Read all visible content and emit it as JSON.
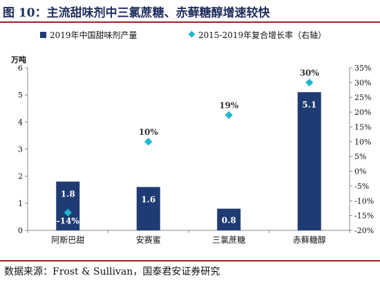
{
  "header": {
    "title": "图 10：主流甜味剂中三氯蔗糖、赤藓糖醇增速较快"
  },
  "chart_data": {
    "type": "bar",
    "categories": [
      "阿斯巴甜",
      "安赛蜜",
      "三氯蔗糖",
      "赤藓糖醇"
    ],
    "series": [
      {
        "name": "2019年中国甜味剂产量",
        "type": "bar",
        "axis": "left",
        "values": [
          1.8,
          1.6,
          0.8,
          5.1
        ],
        "labels": [
          "1.8",
          "1.6",
          "0.8",
          "5.1"
        ],
        "color": "#1f3b73"
      },
      {
        "name": "2015-2019年复合增长率（右轴）",
        "type": "scatter",
        "axis": "right",
        "values": [
          -14,
          10,
          19,
          30
        ],
        "labels": [
          "-14%",
          "10%",
          "19%",
          "30%"
        ],
        "color": "#1eb8d0"
      }
    ],
    "ylabel_left": "万吨",
    "ylim_left": [
      0,
      6
    ],
    "yticks_left": [
      "0",
      "1",
      "2",
      "3",
      "4",
      "5",
      "6"
    ],
    "ylim_right": [
      -20,
      35
    ],
    "yticks_right": [
      "-20%",
      "-15%",
      "-10%",
      "-5%",
      "0%",
      "5%",
      "10%",
      "15%",
      "20%",
      "25%",
      "30%",
      "35%"
    ],
    "grid": false,
    "legend_position": "top"
  },
  "footer": {
    "source": "数据来源：Frost & Sullivan，国泰君安证券研究"
  }
}
